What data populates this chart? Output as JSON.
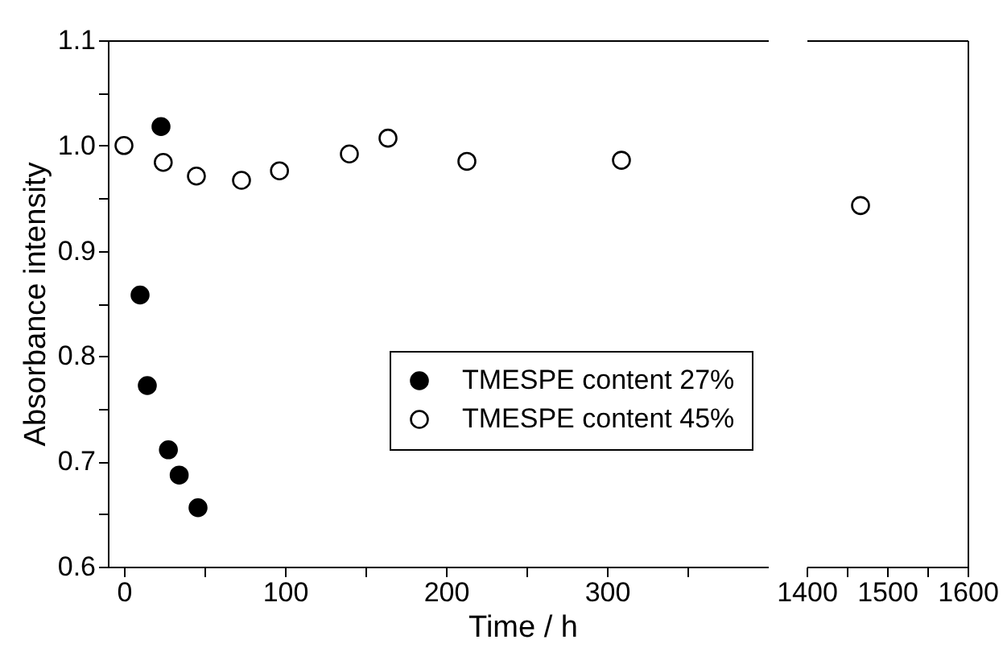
{
  "chart_data": [
    {
      "type": "scatter",
      "ylabel": "Absorbance intensity",
      "xlabel": "Time / h",
      "xlim": [
        -10,
        400
      ],
      "ylim": [
        0.6,
        1.1
      ],
      "xticks": [
        0,
        {
          "value": 50,
          "label": null
        },
        100,
        {
          "value": 150,
          "label": null
        },
        200,
        {
          "value": 250,
          "label": null
        },
        300,
        {
          "value": 350,
          "label": null
        }
      ],
      "yticks": [
        0.6,
        {
          "value": 0.65,
          "label": null
        },
        0.7,
        {
          "value": 0.75,
          "label": null
        },
        0.8,
        {
          "value": 0.85,
          "label": null
        },
        0.9,
        {
          "value": 0.95,
          "label": null
        },
        {
          "value": 1,
          "label": "1.0"
        },
        {
          "value": 1.05,
          "label": null
        },
        1.1
      ],
      "marker": "circle",
      "legend": "right",
      "series": [
        {
          "name": "TMESPE content 27%",
          "color": "#000000",
          "x": [
            10,
            14.5,
            23,
            27.6,
            34.3,
            46
          ],
          "values": [
            0.858,
            0.772,
            1.018,
            0.711,
            0.687,
            0.656
          ]
        },
        {
          "name": "TMESPE content 45%",
          "color": "#ffffff",
          "x": [
            0,
            24.4,
            45,
            73,
            96.6,
            140,
            164,
            213,
            309
          ],
          "values": [
            1.0,
            0.984,
            0.971,
            0.967,
            0.976,
            0.992,
            1.007,
            0.985,
            0.986
          ]
        }
      ]
    },
    {
      "type": "scatter",
      "xlim": [
        1400,
        1600
      ],
      "ylim": [
        0.6,
        1.1
      ],
      "tick_labels": "x",
      "marker": "circle",
      "xticks": [
        1400,
        {
          "value": 1450,
          "label": null
        },
        1500,
        {
          "value": 1550,
          "label": null
        },
        1600
      ],
      "series": [
        {
          "color": "#ffffff",
          "x": [
            1467
          ],
          "values": [
            0.943
          ]
        }
      ]
    }
  ]
}
